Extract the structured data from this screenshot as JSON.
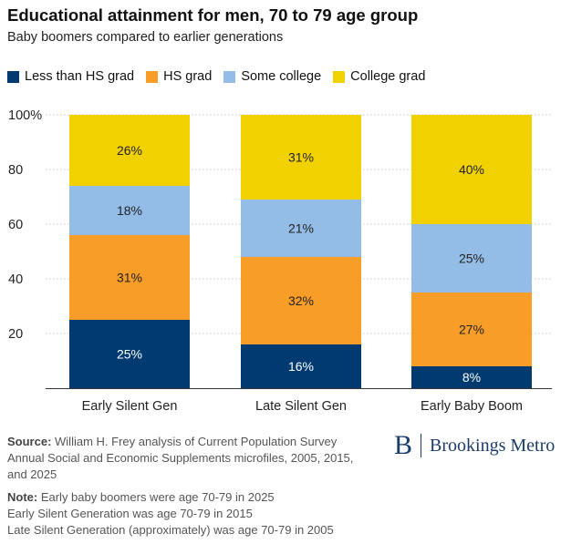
{
  "chart_data": {
    "type": "bar",
    "stacked": true,
    "title": "Educational attainment for men, 70 to 79 age group",
    "subtitle": "Baby boomers compared to earlier generations",
    "categories": [
      "Early Silent Gen",
      "Late Silent Gen",
      "Early Baby Boom"
    ],
    "series": [
      {
        "name": "Less than HS grad",
        "color": "#003a70",
        "values": [
          25,
          16,
          8
        ],
        "labels": [
          "25%",
          "16%",
          "8%"
        ]
      },
      {
        "name": "HS grad",
        "color": "#f89d28",
        "values": [
          31,
          32,
          27
        ],
        "labels": [
          "31%",
          "32%",
          "27%"
        ]
      },
      {
        "name": "Some college",
        "color": "#93bde6",
        "values": [
          18,
          21,
          25
        ],
        "labels": [
          "18%",
          "21%",
          "25%"
        ]
      },
      {
        "name": "College grad",
        "color": "#f2d100",
        "values": [
          26,
          31,
          40
        ],
        "labels": [
          "26%",
          "31%",
          "40%"
        ]
      }
    ],
    "ylim": [
      0,
      100
    ],
    "yticks": [
      20,
      40,
      60,
      80,
      100
    ],
    "ytick_labels": [
      "20",
      "40",
      "60",
      "80",
      "100%"
    ],
    "grid": true,
    "legend": "top"
  },
  "source": {
    "label": "Source:",
    "text": " William H. Frey analysis of Current Population Survey Annual Social and Economic Supplements microfiles, 2005, 2015, and 2025"
  },
  "note": {
    "label": "Note:",
    "text": " Early baby boomers were age 70-79 in 2025",
    "line2": "Early Silent Generation was age 70-79 in 2015",
    "line3": "Late Silent Generation (approximately) was age 70-79 in 2005"
  },
  "brand": {
    "letter": "B",
    "name": "Brookings Metro"
  }
}
